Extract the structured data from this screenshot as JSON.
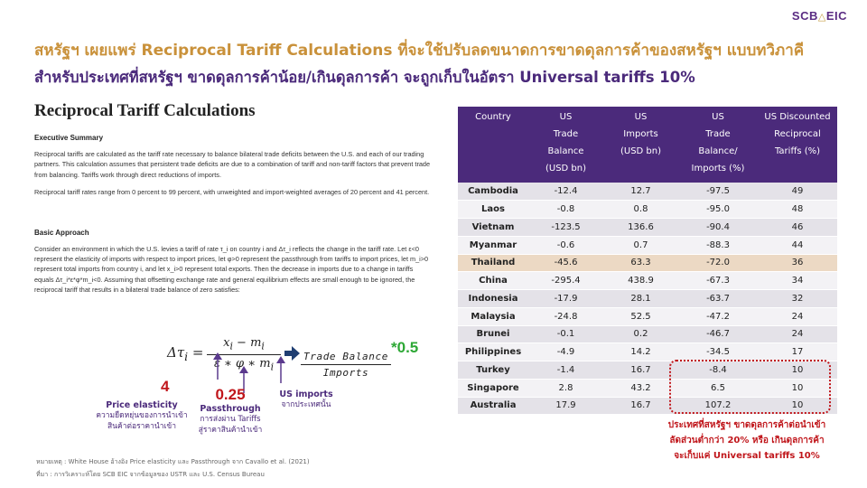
{
  "brand": {
    "name": "SCB",
    "suffix": "EIC"
  },
  "headline": {
    "line1": "สหรัฐฯ เผยแพร่ Reciprocal Tariff Calculations ที่จะใช้ปรับลดขนาดการขาดดุลการค้าของสหรัฐฯ แบบทวิภาคี",
    "line2": "สำหรับประเทศที่สหรัฐฯ ขาดดุลการค้าน้อย/เกินดุลการค้า จะถูกเก็บในอัตรา Universal tariffs 10%"
  },
  "doc": {
    "title": "Reciprocal Tariff Calculations",
    "summary_heading": "Executive Summary",
    "summary_p1": "Reciprocal tariffs are calculated as the tariff rate necessary to balance bilateral trade deficits between the U.S. and each of our trading partners. This calculation assumes that persistent trade deficits are due to a combination of tariff and non-tariff factors that prevent trade from balancing. Tariffs work through direct reductions of imports.",
    "summary_p2": "Reciprocal tariff rates range from 0 percent to 99 percent, with unweighted and import-weighted averages of 20 percent and 41 percent.",
    "basic_heading": "Basic Approach",
    "basic_p1": "Consider an environment in which the U.S. levies a tariff of rate τ_i on country i and Δτ_i reflects the change in the tariff rate. Let ε<0 represent the elasticity of imports with respect to import prices, let φ>0 represent the passthrough from tariffs to import prices, let m_i>0 represent total imports from country i, and let x_i>0 represent total exports. Then the decrease in imports due to a change in tariffs equals Δτ_i*ε*φ*m_i<0. Assuming that offsetting exchange rate and general equilibrium effects are small enough to be ignored, the reciprocal tariff that results in a bilateral trade balance of zero satisfies:"
  },
  "formula": {
    "lhs": "Δτ",
    "lhs_sub": "i",
    "eq": "=",
    "numerator": "x",
    "numerator_sub": "i",
    "numerator_mid": " − m",
    "numerator_sub2": "i",
    "denominator": "ε ∗ φ ∗ m",
    "denominator_sub": "i",
    "trade_balance": "Trade Balance",
    "imports": "Imports",
    "multiplier": "*0.5"
  },
  "annotations": {
    "elasticity_value": "4",
    "elasticity_label": "Price elasticity",
    "elasticity_th1": "ความยืดหยุ่นของการนำเข้า",
    "elasticity_th2": "สินค้าต่อราคานำเข้า",
    "passthrough_value": "0.25",
    "passthrough_label": "Passthrough",
    "passthrough_th1": "การส่งผ่าน Tariffs",
    "passthrough_th2": "สู่ราคาสินค้านำเข้า",
    "imports_label": "US imports",
    "imports_th": "จากประเทศนั้น"
  },
  "notes": {
    "remark": "หมายเหตุ : White House อ้างอิง Price elasticity และ Passthrough จาก Cavallo et al. (2021)",
    "source": "ที่มา : การวิเคราะห์โดย SCB EIC จากข้อมูลของ USTR และ U.S. Census Bureau"
  },
  "table": {
    "headers": [
      {
        "lines": [
          "Country"
        ]
      },
      {
        "lines": [
          "US",
          "Trade",
          "Balance",
          "(USD bn)"
        ]
      },
      {
        "lines": [
          "US",
          "Imports",
          "(USD bn)"
        ]
      },
      {
        "lines": [
          "US",
          "Trade",
          "Balance/",
          "Imports (%)"
        ]
      },
      {
        "lines": [
          "US Discounted",
          "Reciprocal",
          "Tariffs (%)"
        ]
      }
    ],
    "rows": [
      {
        "country": "Cambodia",
        "balance": "-12.4",
        "imports": "12.7",
        "ratio": "-97.5",
        "tariff": "49"
      },
      {
        "country": "Laos",
        "balance": "-0.8",
        "imports": "0.8",
        "ratio": "-95.0",
        "tariff": "48"
      },
      {
        "country": "Vietnam",
        "balance": "-123.5",
        "imports": "136.6",
        "ratio": "-90.4",
        "tariff": "46"
      },
      {
        "country": "Myanmar",
        "balance": "-0.6",
        "imports": "0.7",
        "ratio": "-88.3",
        "tariff": "44"
      },
      {
        "country": "Thailand",
        "balance": "-45.6",
        "imports": "63.3",
        "ratio": "-72.0",
        "tariff": "36",
        "highlight": true
      },
      {
        "country": "China",
        "balance": "-295.4",
        "imports": "438.9",
        "ratio": "-67.3",
        "tariff": "34"
      },
      {
        "country": "Indonesia",
        "balance": "-17.9",
        "imports": "28.1",
        "ratio": "-63.7",
        "tariff": "32"
      },
      {
        "country": "Malaysia",
        "balance": "-24.8",
        "imports": "52.5",
        "ratio": "-47.2",
        "tariff": "24"
      },
      {
        "country": "Brunei",
        "balance": "-0.1",
        "imports": "0.2",
        "ratio": "-46.7",
        "tariff": "24"
      },
      {
        "country": "Philippines",
        "balance": "-4.9",
        "imports": "14.2",
        "ratio": "-34.5",
        "tariff": "17"
      },
      {
        "country": "Turkey",
        "balance": "-1.4",
        "imports": "16.7",
        "ratio": "-8.4",
        "tariff": "10"
      },
      {
        "country": "Singapore",
        "balance": "2.8",
        "imports": "43.2",
        "ratio": "6.5",
        "tariff": "10"
      },
      {
        "country": "Australia",
        "balance": "17.9",
        "imports": "16.7",
        "ratio": "107.2",
        "tariff": "10"
      }
    ]
  },
  "callout": {
    "line1": "ประเทศที่สหรัฐฯ ขาดดุลการค้าต่อนำเข้า",
    "line2": "ลัดส่วนต่ำกว่า 20% หรือ เกินดุลการค้า",
    "line3": "จะเก็บแค่ Universal tariffs 10%"
  },
  "colors": {
    "purple": "#4b2a7b",
    "gold": "#c9913a",
    "red": "#c0161b",
    "green": "#2ea836",
    "highlight": "#ecd9c4"
  }
}
